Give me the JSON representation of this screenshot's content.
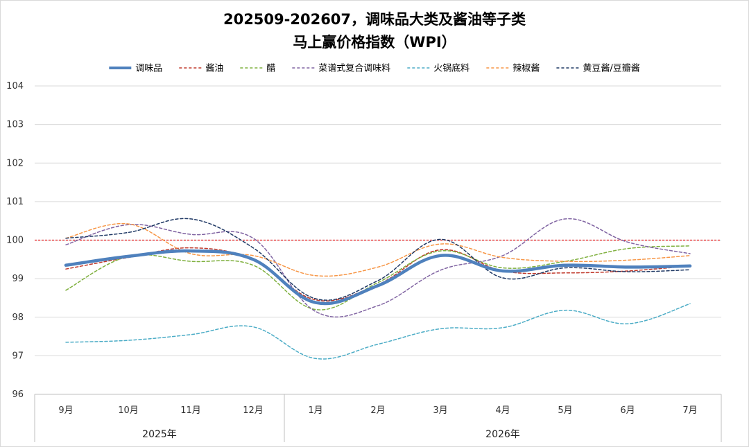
{
  "chart_data": {
    "type": "line",
    "title_line1": "202509-202607，调味品大类及酱油等子类",
    "title_line2": "马上赢价格指数（WPI）",
    "xlabel": "",
    "ylabel": "",
    "categories": [
      "9月",
      "10月",
      "11月",
      "12月",
      "1月",
      "2月",
      "3月",
      "4月",
      "5月",
      "6月",
      "7月"
    ],
    "years": [
      {
        "label": "2025年",
        "start": 0,
        "end": 3
      },
      {
        "label": "2026年",
        "start": 4,
        "end": 10
      }
    ],
    "ylim": [
      96,
      104
    ],
    "yticks": [
      96,
      97,
      98,
      99,
      100,
      101,
      102,
      103,
      104
    ],
    "reference_line": {
      "value": 100,
      "color": "#e31a1c"
    },
    "grid": true,
    "legend_position": "top",
    "series": [
      {
        "name": "调味品",
        "color": "#4f81bd",
        "dashed": false,
        "width": 4.5,
        "values": [
          99.35,
          99.58,
          99.72,
          99.5,
          98.38,
          98.82,
          99.6,
          99.2,
          99.35,
          99.3,
          99.33
        ]
      },
      {
        "name": "酱油",
        "color": "#c0392b",
        "dashed": true,
        "width": 1.5,
        "values": [
          99.25,
          99.55,
          99.8,
          99.5,
          98.45,
          98.85,
          99.75,
          99.2,
          99.15,
          99.2,
          99.33
        ]
      },
      {
        "name": "醋",
        "color": "#7fb03e",
        "dashed": true,
        "width": 1.5,
        "values": [
          98.7,
          99.58,
          99.45,
          99.35,
          98.2,
          98.9,
          99.72,
          99.28,
          99.45,
          99.78,
          99.85
        ]
      },
      {
        "name": "菜谱式复合调味料",
        "color": "#8064a2",
        "dashed": true,
        "width": 1.5,
        "values": [
          99.88,
          100.4,
          100.15,
          100.05,
          98.15,
          98.3,
          99.22,
          99.6,
          100.55,
          99.95,
          99.65
        ]
      },
      {
        "name": "火锅底料",
        "color": "#4bacc6",
        "dashed": true,
        "width": 1.5,
        "values": [
          97.35,
          97.4,
          97.55,
          97.75,
          96.93,
          97.3,
          97.7,
          97.73,
          98.18,
          97.83,
          98.35
        ]
      },
      {
        "name": "辣椒酱",
        "color": "#f79646",
        "dashed": true,
        "width": 1.5,
        "values": [
          100.05,
          100.42,
          99.65,
          99.6,
          99.08,
          99.3,
          99.9,
          99.55,
          99.45,
          99.48,
          99.6
        ]
      },
      {
        "name": "黄豆酱/豆瓣酱",
        "color": "#1f3864",
        "dashed": true,
        "width": 1.5,
        "values": [
          100.05,
          100.2,
          100.55,
          99.8,
          98.48,
          98.95,
          100.02,
          99.02,
          99.28,
          99.18,
          99.23
        ]
      }
    ]
  }
}
